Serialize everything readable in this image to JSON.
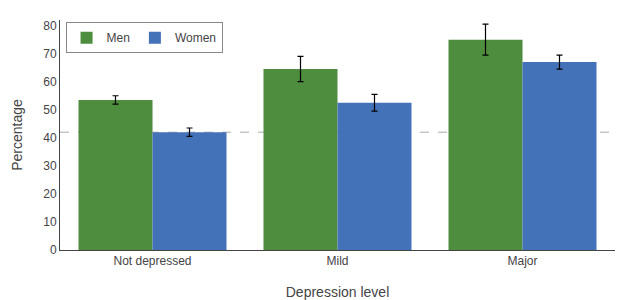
{
  "chart_data": {
    "type": "bar",
    "categories": [
      "Not depressed",
      "Mild",
      "Major"
    ],
    "series": [
      {
        "name": "Men",
        "color": "#4e8c3e",
        "values": [
          53.5,
          64.5,
          75.0
        ],
        "errors": [
          1.5,
          4.5,
          5.5
        ]
      },
      {
        "name": "Women",
        "color": "#4472b8",
        "values": [
          42.0,
          52.5,
          67.0
        ],
        "errors": [
          1.5,
          3.0,
          2.5
        ]
      }
    ],
    "xlabel": "Depression level",
    "ylabel": "Percentage",
    "ylim": [
      0,
      82
    ],
    "yticks": [
      0,
      10,
      20,
      30,
      40,
      50,
      60,
      70,
      80
    ],
    "reference_line": {
      "y": 42.0,
      "color": "#aaaaaa",
      "line_style": "dash"
    },
    "legend": "upper left",
    "grid": false
  }
}
